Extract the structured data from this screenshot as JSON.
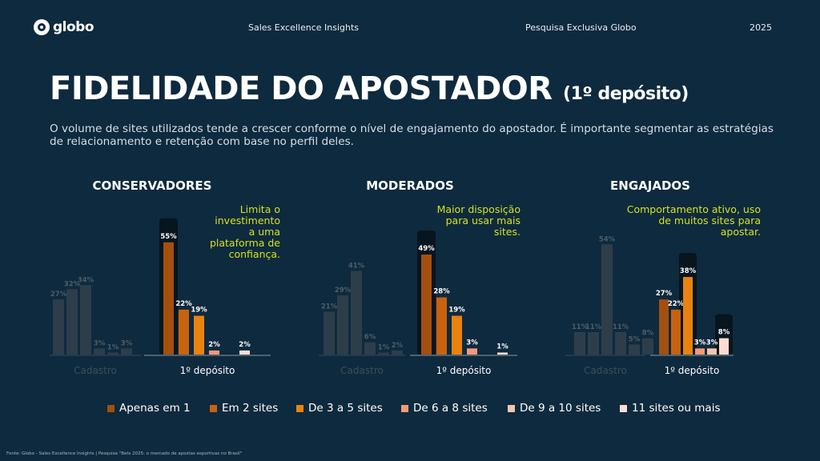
{
  "header": {
    "brand": "globo",
    "subtitle": "Sales Excellence Insights",
    "survey": "Pesquisa Exclusiva Globo",
    "year": "2025"
  },
  "title": {
    "main": "FIDELIDADE DO APOSTADOR",
    "suffix": "(1º depósito)"
  },
  "intro": "O volume de sites utilizados tende a crescer conforme o nível de engajamento do apostador. É importante segmentar as estratégias de relacionamento e retenção com base no perfil deles.",
  "legend": [
    {
      "label": "Apenas em 1",
      "color": "#a34f10"
    },
    {
      "label": "Em 2 sites",
      "color": "#c9620f"
    },
    {
      "label": "De 3 a 5 sites",
      "color": "#e8830f"
    },
    {
      "label": "De 6 a 8 sites",
      "color": "#f29a78"
    },
    {
      "label": "De 9 a 10 sites",
      "color": "#f7c4ae"
    },
    {
      "label": "11 sites ou mais",
      "color": "#fbddd0"
    }
  ],
  "footer": "Fonte: Globo - Sales Excellence Insights | Pesquisa \"Bets 2025: o mercado de apostas esportivas no Brasil\"",
  "chart_data": [
    {
      "type": "bar",
      "title": "CONSERVADORES",
      "annotation": "Limita o investimento a uma plataforma de confiança.",
      "categories": [
        "Apenas em 1",
        "Em 2 sites",
        "De 3 a 5 sites",
        "De 6 a 8 sites",
        "De 9 a 10 sites",
        "11 sites ou mais"
      ],
      "series": [
        {
          "name": "Cadastro",
          "values": [
            27,
            32,
            34,
            3,
            1,
            3
          ]
        },
        {
          "name": "1º depósito",
          "values": [
            55,
            22,
            19,
            2,
            null,
            2
          ]
        }
      ],
      "ylim": [
        0,
        60
      ]
    },
    {
      "type": "bar",
      "title": "MODERADOS",
      "annotation": "Maior disposição para usar mais sites.",
      "categories": [
        "Apenas em 1",
        "Em 2 sites",
        "De 3 a 5 sites",
        "De 6 a 8 sites",
        "De 9 a 10 sites",
        "11 sites ou mais"
      ],
      "series": [
        {
          "name": "Cadastro",
          "values": [
            21,
            29,
            41,
            6,
            1,
            2
          ]
        },
        {
          "name": "1º depósito",
          "values": [
            49,
            28,
            19,
            3,
            null,
            1
          ]
        }
      ],
      "ylim": [
        0,
        60
      ]
    },
    {
      "type": "bar",
      "title": "ENGAJADOS",
      "annotation": "Comportamento ativo, uso de muitos sites para apostar.",
      "categories": [
        "Apenas em 1",
        "Em 2 sites",
        "De 3 a 5 sites",
        "De 6 a 8 sites",
        "De 9 a 10 sites",
        "11 sites ou mais"
      ],
      "series": [
        {
          "name": "Cadastro",
          "values": [
            11,
            11,
            54,
            11,
            5,
            8
          ]
        },
        {
          "name": "1º depósito",
          "values": [
            27,
            22,
            38,
            3,
            3,
            8
          ]
        }
      ],
      "ylim": [
        0,
        60
      ]
    }
  ]
}
